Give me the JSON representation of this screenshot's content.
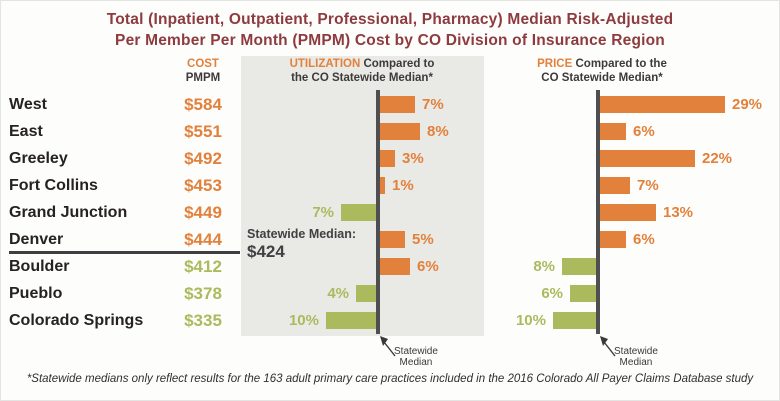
{
  "title": {
    "line1": "Total (Inpatient, Outpatient, Professional, Pharmacy) Median Risk-Adjusted",
    "line2": "Per Member Per Month (PMPM) Cost by CO Division of Insurance Region"
  },
  "headers": {
    "cost": {
      "highlight": "COST",
      "line2": "PMPM"
    },
    "utilization": {
      "highlight": "UTILIZATION",
      "line1_rest": " Compared to",
      "line2": "the CO Statewide Median*"
    },
    "price": {
      "highlight": "PRICE",
      "line1_rest": " Compared to the",
      "line2": "CO Statewide Median*"
    }
  },
  "statewide_median": {
    "label": "Statewide Median:",
    "value": "$424"
  },
  "axis_note": {
    "line1": "Statewide",
    "line2": "Median"
  },
  "footnote": "*Statewide medians only reflect results for the 163 adult primary care practices included in the 2016 Colorado All Payer Claims Database study",
  "colors": {
    "orange": "#E2813C",
    "green": "#ACBA5E",
    "title_maroon": "#8D3B3E",
    "axis_gray": "#4F4F51",
    "panel_gray": "#E9E9E6"
  },
  "chart_data": {
    "type": "bar",
    "title": "Total (Inpatient, Outpatient, Professional, Pharmacy) Median Risk-Adjusted Per Member Per Month (PMPM) Cost by CO Division of Insurance Region",
    "statewide_median_cost_pmpm": 424,
    "categories": [
      "West",
      "East",
      "Greeley",
      "Fort Collins",
      "Grand Junction",
      "Denver",
      "Boulder",
      "Pueblo",
      "Colorado Springs"
    ],
    "series": [
      {
        "name": "Cost PMPM ($)",
        "values": [
          584,
          551,
          492,
          453,
          449,
          444,
          412,
          378,
          335
        ]
      },
      {
        "name": "Utilization vs CO statewide median (%)",
        "values": [
          7,
          8,
          3,
          1,
          -7,
          5,
          6,
          -4,
          -10
        ]
      },
      {
        "name": "Price vs CO statewide median (%)",
        "values": [
          29,
          6,
          22,
          7,
          13,
          6,
          -8,
          -6,
          -10
        ]
      }
    ],
    "rows": [
      {
        "region": "West",
        "cost": "$584",
        "cost_value": 584,
        "cost_below_median": false,
        "utilization": {
          "pct": 7,
          "label": "7%"
        },
        "price": {
          "pct": 29,
          "label": "29%"
        }
      },
      {
        "region": "East",
        "cost": "$551",
        "cost_value": 551,
        "cost_below_median": false,
        "utilization": {
          "pct": 8,
          "label": "8%"
        },
        "price": {
          "pct": 6,
          "label": "6%"
        }
      },
      {
        "region": "Greeley",
        "cost": "$492",
        "cost_value": 492,
        "cost_below_median": false,
        "utilization": {
          "pct": 3,
          "label": "3%"
        },
        "price": {
          "pct": 22,
          "label": "22%"
        }
      },
      {
        "region": "Fort Collins",
        "cost": "$453",
        "cost_value": 453,
        "cost_below_median": false,
        "utilization": {
          "pct": 1,
          "label": "1%"
        },
        "price": {
          "pct": 7,
          "label": "7%"
        }
      },
      {
        "region": "Grand Junction",
        "cost": "$449",
        "cost_value": 449,
        "cost_below_median": false,
        "utilization": {
          "pct": -7,
          "label": "7%"
        },
        "price": {
          "pct": 13,
          "label": "13%"
        }
      },
      {
        "region": "Denver",
        "cost": "$444",
        "cost_value": 444,
        "cost_below_median": false,
        "utilization": {
          "pct": 5,
          "label": "5%"
        },
        "price": {
          "pct": 6,
          "label": "6%"
        }
      },
      {
        "region": "Boulder",
        "cost": "$412",
        "cost_value": 412,
        "cost_below_median": true,
        "utilization": {
          "pct": 6,
          "label": "6%"
        },
        "price": {
          "pct": -8,
          "label": "8%"
        }
      },
      {
        "region": "Pueblo",
        "cost": "$378",
        "cost_value": 378,
        "cost_below_median": true,
        "utilization": {
          "pct": -4,
          "label": "4%"
        },
        "price": {
          "pct": -6,
          "label": "6%"
        }
      },
      {
        "region": "Colorado Springs",
        "cost": "$335",
        "cost_value": 335,
        "cost_below_median": true,
        "utilization": {
          "pct": -10,
          "label": "10%"
        },
        "price": {
          "pct": -10,
          "label": "10%"
        }
      }
    ]
  }
}
